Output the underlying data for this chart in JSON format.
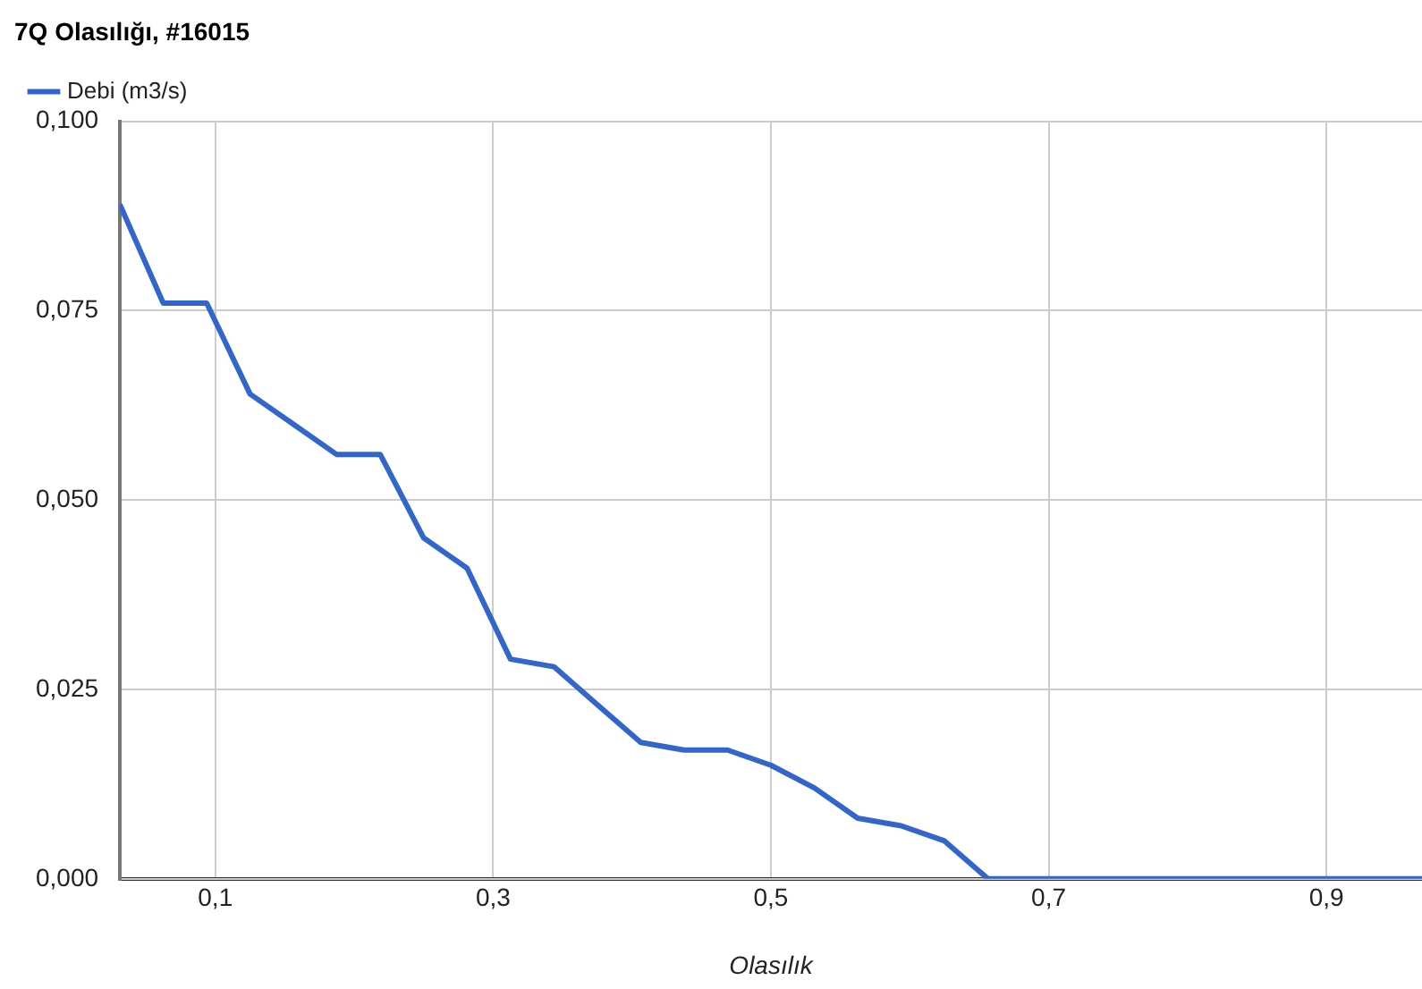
{
  "chart_data": {
    "type": "line",
    "title": "7Q Olasılığı, #16015",
    "xlabel": "Olasılık",
    "x": [
      0.0313,
      0.0625,
      0.0938,
      0.125,
      0.1563,
      0.1875,
      0.2188,
      0.25,
      0.2813,
      0.3125,
      0.3438,
      0.375,
      0.4063,
      0.4375,
      0.4688,
      0.5,
      0.5313,
      0.5625,
      0.5938,
      0.625,
      0.6563,
      0.6875,
      0.7188,
      0.75,
      0.7813,
      0.8125,
      0.8438,
      0.875,
      0.9063,
      0.9375,
      0.9688
    ],
    "series": [
      {
        "name": "Debi (m3/s)",
        "color": "#3366cc",
        "values": [
          0.089,
          0.076,
          0.076,
          0.064,
          0.06,
          0.056,
          0.056,
          0.045,
          0.041,
          0.029,
          0.028,
          0.023,
          0.018,
          0.017,
          0.017,
          0.015,
          0.012,
          0.008,
          0.007,
          0.005,
          0,
          0,
          0,
          0,
          0,
          0,
          0,
          0,
          0,
          0,
          0
        ]
      }
    ],
    "xlim": [
      0.0313,
      0.9688
    ],
    "xticks": [
      {
        "value": 0.1,
        "label": "0,1"
      },
      {
        "value": 0.3,
        "label": "0,3"
      },
      {
        "value": 0.5,
        "label": "0,5"
      },
      {
        "value": 0.7,
        "label": "0,7"
      },
      {
        "value": 0.9,
        "label": "0,9"
      }
    ],
    "ylim": [
      0,
      0.1
    ],
    "yticks": [
      {
        "value": 0,
        "label": "0,000"
      },
      {
        "value": 0.025,
        "label": "0,025"
      },
      {
        "value": 0.05,
        "label": "0,050"
      },
      {
        "value": 0.075,
        "label": "0,075"
      },
      {
        "value": 0.1,
        "label": "0,100"
      }
    ],
    "grid": true,
    "legend": "top left",
    "marker": "none",
    "line_style": "solid"
  }
}
